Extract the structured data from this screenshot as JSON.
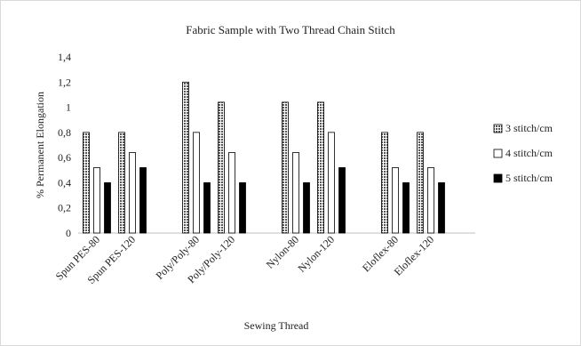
{
  "chart_data": {
    "type": "bar",
    "title": "Fabric Sample with Two Thread Chain Stitch",
    "xlabel": "Sewing Thread",
    "ylabel": "% Permanent Elongation",
    "ylim": [
      0,
      1.4
    ],
    "yticks": [
      "0",
      "0,2",
      "0,4",
      "0,6",
      "0,8",
      "1",
      "1,2",
      "1,4"
    ],
    "grid": false,
    "legend_position": "right",
    "categories": [
      "Spun PES-80",
      "Spun PES-120",
      "Poly/Poly-80",
      "Poly/Poly-120",
      "Nylon-80",
      "Nylon-120",
      "Eloflex-80",
      "Eloflex-120"
    ],
    "category_groups": [
      [
        "Spun PES-80",
        "Spun PES-120"
      ],
      [
        "Poly/Poly-80",
        "Poly/Poly-120"
      ],
      [
        "Nylon-80",
        "Nylon-120"
      ],
      [
        "Eloflex-80",
        "Eloflex-120"
      ]
    ],
    "series": [
      {
        "name": "3 stitch/cm",
        "pattern": "dotted",
        "values": [
          0.8,
          0.8,
          1.2,
          1.04,
          1.04,
          1.04,
          0.8,
          0.8
        ]
      },
      {
        "name": "4 stitch/cm",
        "pattern": "white",
        "values": [
          0.52,
          0.64,
          0.8,
          0.64,
          0.64,
          0.8,
          0.52,
          0.52
        ]
      },
      {
        "name": "5 stitch/cm",
        "pattern": "solid",
        "values": [
          0.4,
          0.52,
          0.4,
          0.4,
          0.4,
          0.52,
          0.4,
          0.4
        ]
      }
    ],
    "colors": {
      "bar_stroke": "#000000",
      "dotted_fill": "#555555",
      "solid_fill": "#000000",
      "axis": "#bfbfbf",
      "text": "#222222"
    }
  }
}
